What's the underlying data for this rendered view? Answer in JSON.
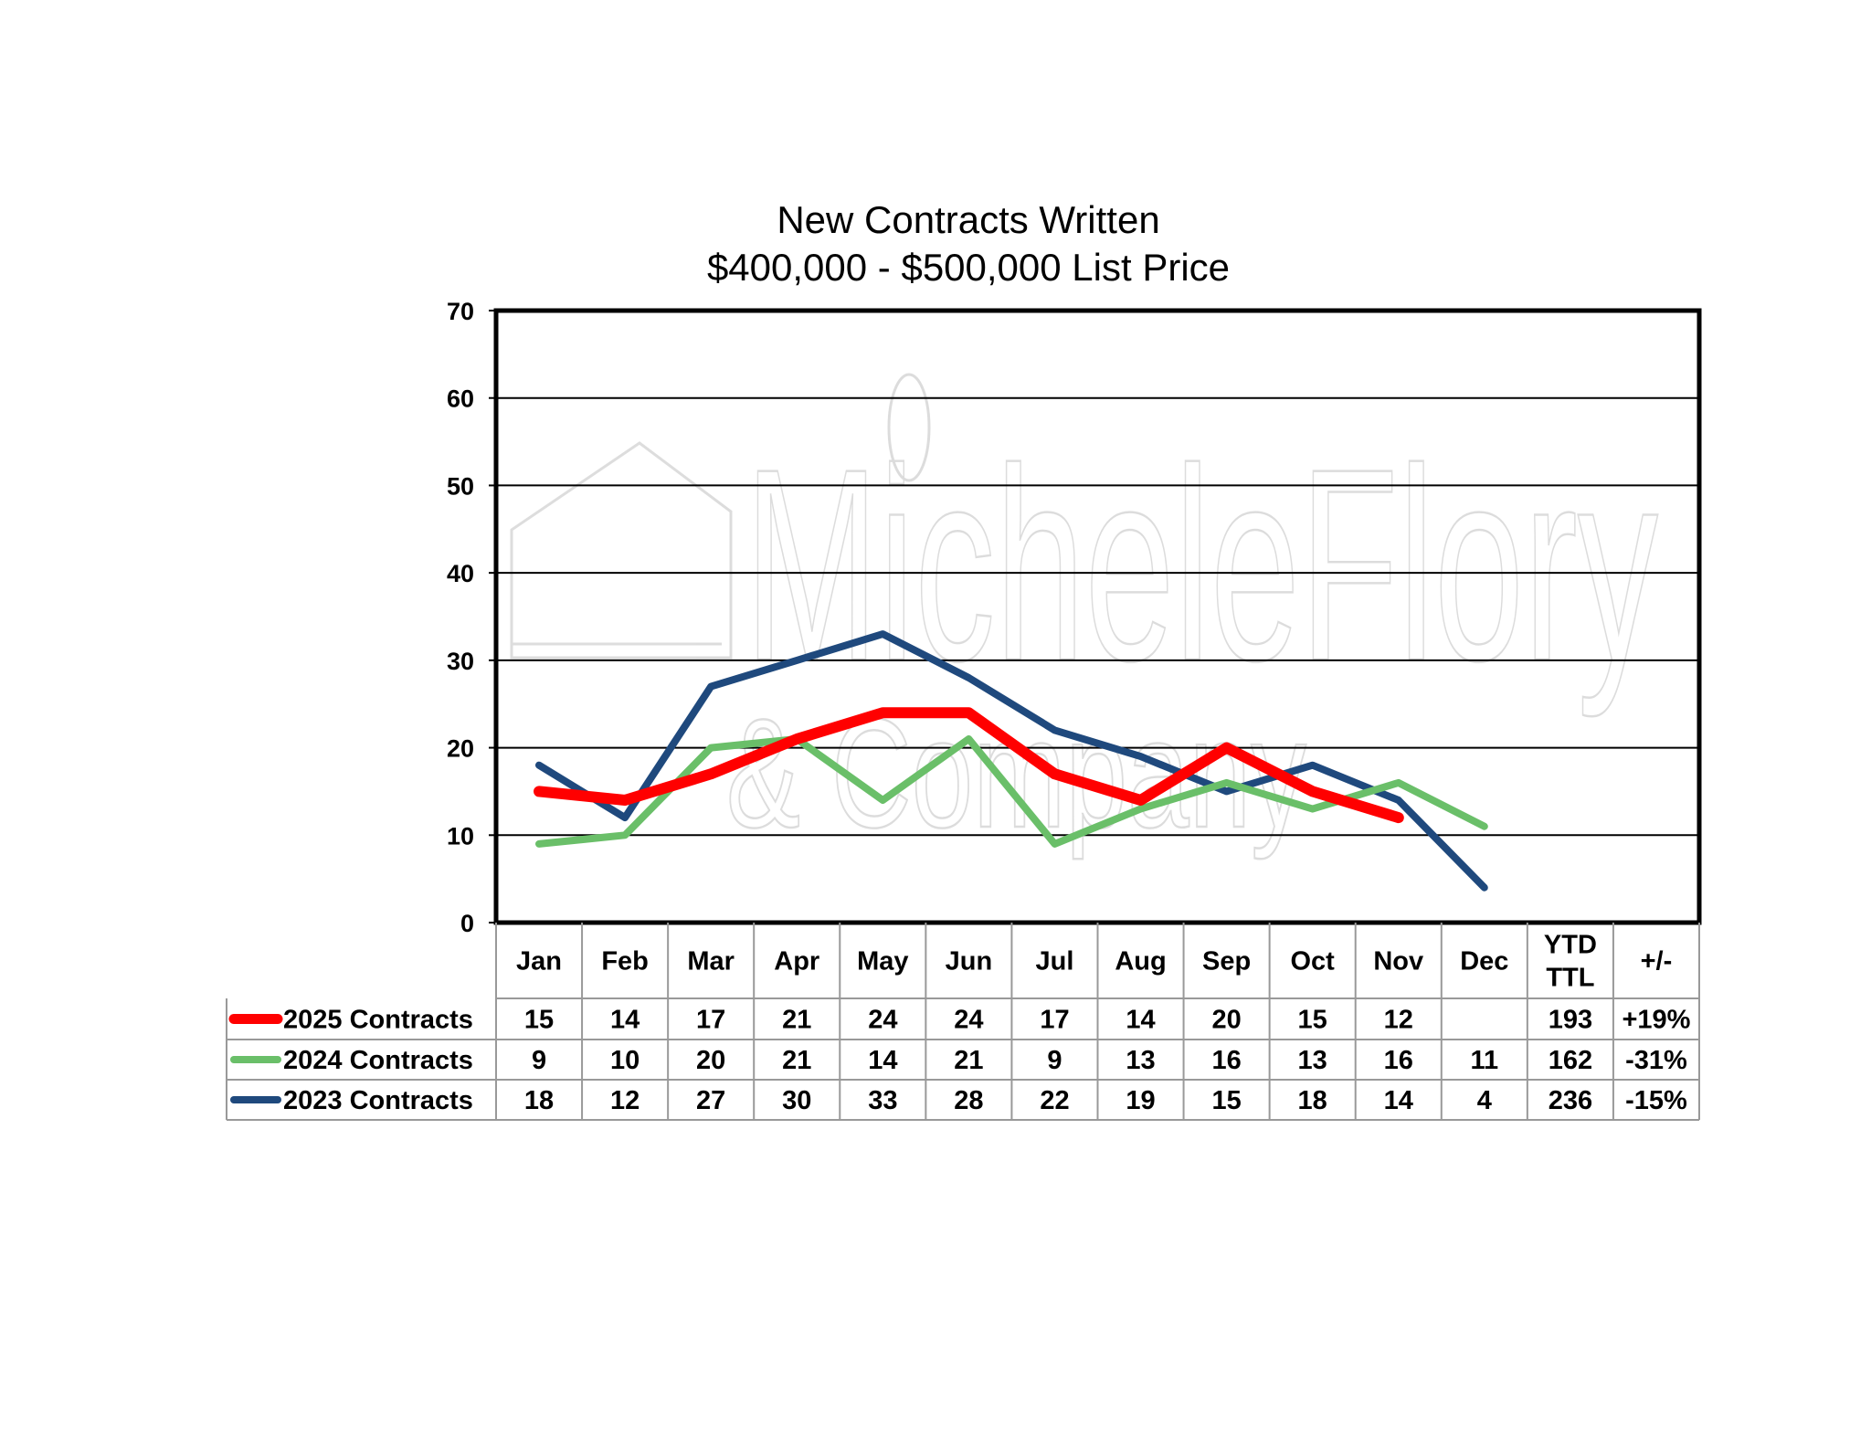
{
  "chart_data": {
    "type": "line",
    "title": "New Contracts Written",
    "subtitle": "$400,000 - $500,000 List Price",
    "categories": [
      "Jan",
      "Feb",
      "Mar",
      "Apr",
      "May",
      "Jun",
      "Jul",
      "Aug",
      "Sep",
      "Oct",
      "Nov",
      "Dec"
    ],
    "yticks": [
      "0",
      "10",
      "20",
      "30",
      "40",
      "50",
      "60",
      "70"
    ],
    "ylim": [
      0,
      70
    ],
    "grid": true,
    "legend": "data-table",
    "series": [
      {
        "name": "2025 Contracts",
        "color": "#ff0000",
        "values": [
          15,
          14,
          17,
          21,
          24,
          24,
          17,
          14,
          20,
          15,
          12,
          null
        ],
        "ytd_ttl": "193",
        "change": "+19%"
      },
      {
        "name": "2024 Contracts",
        "color": "#6abf69",
        "values": [
          9,
          10,
          20,
          21,
          14,
          21,
          9,
          13,
          16,
          13,
          16,
          11
        ],
        "ytd_ttl": "162",
        "change": "-31%"
      },
      {
        "name": "2023 Contracts",
        "color": "#1f497d",
        "values": [
          18,
          12,
          27,
          30,
          33,
          28,
          22,
          19,
          15,
          18,
          14,
          4
        ],
        "ytd_ttl": "236",
        "change": "-15%"
      }
    ],
    "table_headers": {
      "ytd_line1": "YTD",
      "ytd_line2": "TTL",
      "change": "+/-"
    }
  },
  "watermark": {
    "line1": "MicheleFlory",
    "line2": "& Company"
  }
}
